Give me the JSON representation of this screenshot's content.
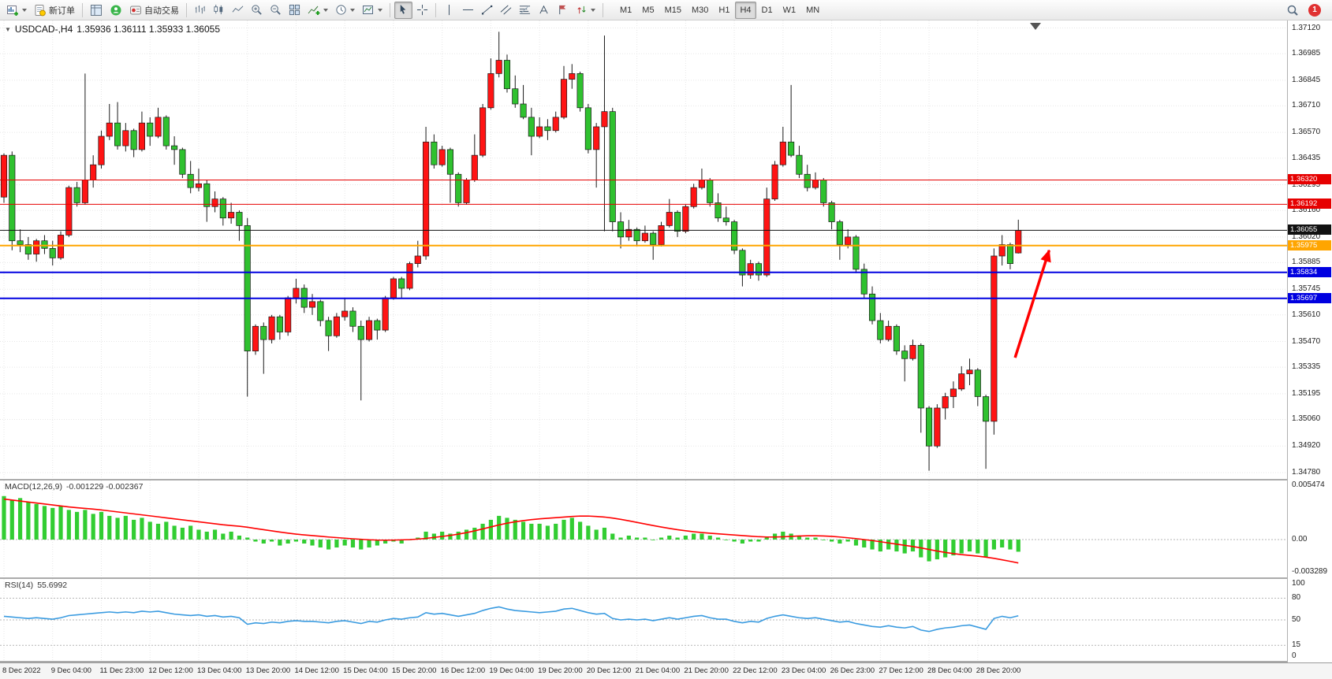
{
  "toolbar": {
    "new_order_label": "新订单",
    "autotrading_label": "自动交易",
    "timeframes": [
      "M1",
      "M5",
      "M15",
      "M30",
      "H1",
      "H4",
      "D1",
      "W1",
      "MN"
    ],
    "active_timeframe": "H4",
    "notification_badge": "1"
  },
  "chart": {
    "title": "USDCAD-,H4",
    "ohlc_quote": "1.35936 1.36111 1.35933 1.36055",
    "macd_label": "MACD(12,26,9)",
    "macd_values": "-0.001229 -0.002367",
    "rsi_label": "RSI(14)",
    "rsi_value": "55.6992"
  },
  "chart_data": {
    "type": "candlestick",
    "symbol": "USDCAD",
    "timeframe": "H4",
    "colors": {
      "up": "#FF1414",
      "down": "#2FC12F",
      "wick": "#1a1a1a",
      "macd_hist": "#32CD32",
      "macd_signal": "#FF0000",
      "rsi_line": "#3A9BE0",
      "grid": "#E7E7E7",
      "level_red": "#E60000",
      "level_blue": "#0000E0",
      "level_orange": "#FFA500",
      "current": "#111111"
    },
    "price_axis_labels": [
      "1.37120",
      "1.36985",
      "1.36845",
      "1.36710",
      "1.36570",
      "1.36435",
      "1.36295",
      "1.36160",
      "1.36020",
      "1.35885",
      "1.35745",
      "1.35610",
      "1.35470",
      "1.35335",
      "1.35195",
      "1.35060",
      "1.34920",
      "1.34780"
    ],
    "levels": [
      {
        "price": 1.3632,
        "label": "1.36320",
        "color": "#E60000",
        "thickness": 1
      },
      {
        "price": 1.36192,
        "label": "1.36192",
        "color": "#E60000",
        "thickness": 1
      },
      {
        "price": 1.36055,
        "label": "1.36055",
        "color": "#111111",
        "thickness": 1,
        "role": "current-price"
      },
      {
        "price": 1.35975,
        "label": "1.35975",
        "color": "#FFA500",
        "thickness": 2
      },
      {
        "price": 1.35834,
        "label": "1.35834",
        "color": "#0000E0",
        "thickness": 2
      },
      {
        "price": 1.35697,
        "label": "1.35697",
        "color": "#0000E0",
        "thickness": 2
      }
    ],
    "date_axis_labels": [
      "8 Dec 2022",
      "9 Dec 04:00",
      "11 Dec 23:00",
      "12 Dec 12:00",
      "13 Dec 04:00",
      "13 Dec 20:00",
      "14 Dec 12:00",
      "15 Dec 04:00",
      "15 Dec 20:00",
      "16 Dec 12:00",
      "19 Dec 04:00",
      "19 Dec 20:00",
      "20 Dec 12:00",
      "21 Dec 04:00",
      "21 Dec 20:00",
      "22 Dec 12:00",
      "23 Dec 04:00",
      "26 Dec 23:00",
      "27 Dec 12:00",
      "28 Dec 04:00",
      "28 Dec 20:00"
    ],
    "ohlc": [
      [
        1.3623,
        1.3646,
        1.362,
        1.3645
      ],
      [
        1.3645,
        1.3647,
        1.3595,
        1.36
      ],
      [
        1.36,
        1.3606,
        1.3594,
        1.3598
      ],
      [
        1.3598,
        1.3602,
        1.359,
        1.3593
      ],
      [
        1.3593,
        1.3601,
        1.3589,
        1.36
      ],
      [
        1.36,
        1.3603,
        1.3593,
        1.3596
      ],
      [
        1.3596,
        1.36,
        1.3587,
        1.3591
      ],
      [
        1.3591,
        1.3605,
        1.359,
        1.3603
      ],
      [
        1.3603,
        1.3629,
        1.3602,
        1.3628
      ],
      [
        1.3628,
        1.3631,
        1.3618,
        1.362
      ],
      [
        1.362,
        1.3688,
        1.3619,
        1.3632
      ],
      [
        1.3632,
        1.3645,
        1.3628,
        1.364
      ],
      [
        1.364,
        1.3658,
        1.3638,
        1.3655
      ],
      [
        1.3655,
        1.3672,
        1.3653,
        1.3662
      ],
      [
        1.3662,
        1.3673,
        1.3648,
        1.365
      ],
      [
        1.365,
        1.3662,
        1.3647,
        1.3658
      ],
      [
        1.3658,
        1.3659,
        1.3644,
        1.3648
      ],
      [
        1.3648,
        1.3668,
        1.3647,
        1.3662
      ],
      [
        1.3662,
        1.3665,
        1.365,
        1.3655
      ],
      [
        1.3655,
        1.367,
        1.3654,
        1.3665
      ],
      [
        1.3665,
        1.3666,
        1.3648,
        1.365
      ],
      [
        1.365,
        1.3655,
        1.364,
        1.3648
      ],
      [
        1.3648,
        1.3649,
        1.3633,
        1.3635
      ],
      [
        1.3635,
        1.3642,
        1.3625,
        1.3628
      ],
      [
        1.3628,
        1.3638,
        1.3626,
        1.363
      ],
      [
        1.363,
        1.3632,
        1.361,
        1.3618
      ],
      [
        1.3618,
        1.3626,
        1.3615,
        1.3622
      ],
      [
        1.3622,
        1.3623,
        1.3608,
        1.3612
      ],
      [
        1.3612,
        1.362,
        1.3609,
        1.3615
      ],
      [
        1.3615,
        1.3616,
        1.36,
        1.3608
      ],
      [
        1.3608,
        1.3612,
        1.3518,
        1.3542
      ],
      [
        1.3542,
        1.3556,
        1.354,
        1.3555
      ],
      [
        1.3555,
        1.3557,
        1.353,
        1.3548
      ],
      [
        1.3548,
        1.3561,
        1.3546,
        1.356
      ],
      [
        1.356,
        1.3561,
        1.3548,
        1.3552
      ],
      [
        1.3552,
        1.3571,
        1.355,
        1.357
      ],
      [
        1.357,
        1.358,
        1.3567,
        1.3575
      ],
      [
        1.3575,
        1.3577,
        1.3562,
        1.3565
      ],
      [
        1.3565,
        1.3572,
        1.3561,
        1.3568
      ],
      [
        1.3568,
        1.3569,
        1.3555,
        1.3558
      ],
      [
        1.3558,
        1.356,
        1.3542,
        1.355
      ],
      [
        1.355,
        1.3562,
        1.3549,
        1.356
      ],
      [
        1.356,
        1.357,
        1.3558,
        1.3563
      ],
      [
        1.3563,
        1.3565,
        1.3552,
        1.3555
      ],
      [
        1.3555,
        1.3558,
        1.3516,
        1.3548
      ],
      [
        1.3548,
        1.356,
        1.3547,
        1.3558
      ],
      [
        1.3558,
        1.3559,
        1.3548,
        1.3553
      ],
      [
        1.3553,
        1.3571,
        1.3552,
        1.357
      ],
      [
        1.357,
        1.3581,
        1.3569,
        1.358
      ],
      [
        1.358,
        1.3581,
        1.357,
        1.3575
      ],
      [
        1.3575,
        1.3589,
        1.3574,
        1.3588
      ],
      [
        1.3588,
        1.36,
        1.3586,
        1.3592
      ],
      [
        1.3592,
        1.366,
        1.359,
        1.3652
      ],
      [
        1.3652,
        1.3656,
        1.3638,
        1.364
      ],
      [
        1.364,
        1.365,
        1.3639,
        1.3648
      ],
      [
        1.3648,
        1.3649,
        1.362,
        1.3635
      ],
      [
        1.3635,
        1.3636,
        1.3618,
        1.362
      ],
      [
        1.362,
        1.3633,
        1.3619,
        1.3632
      ],
      [
        1.3632,
        1.3656,
        1.3631,
        1.3645
      ],
      [
        1.3645,
        1.3672,
        1.3644,
        1.367
      ],
      [
        1.367,
        1.3696,
        1.3669,
        1.3688
      ],
      [
        1.3688,
        1.371,
        1.3686,
        1.3695
      ],
      [
        1.3695,
        1.3698,
        1.3678,
        1.368
      ],
      [
        1.368,
        1.3687,
        1.367,
        1.3672
      ],
      [
        1.3672,
        1.3682,
        1.3664,
        1.3665
      ],
      [
        1.3665,
        1.367,
        1.3645,
        1.3655
      ],
      [
        1.3655,
        1.3665,
        1.3654,
        1.366
      ],
      [
        1.366,
        1.3664,
        1.3653,
        1.3658
      ],
      [
        1.3658,
        1.3668,
        1.3657,
        1.3665
      ],
      [
        1.3665,
        1.3692,
        1.3664,
        1.3685
      ],
      [
        1.3685,
        1.3693,
        1.368,
        1.3688
      ],
      [
        1.3688,
        1.3689,
        1.3668,
        1.367
      ],
      [
        1.367,
        1.3672,
        1.3646,
        1.3648
      ],
      [
        1.3648,
        1.3662,
        1.3628,
        1.366
      ],
      [
        1.366,
        1.3708,
        1.3605,
        1.3668
      ],
      [
        1.3668,
        1.367,
        1.3605,
        1.361
      ],
      [
        1.361,
        1.3615,
        1.3596,
        1.3602
      ],
      [
        1.3602,
        1.3611,
        1.36,
        1.3606
      ],
      [
        1.3606,
        1.3607,
        1.3597,
        1.36
      ],
      [
        1.36,
        1.3608,
        1.3599,
        1.3604
      ],
      [
        1.3604,
        1.3605,
        1.359,
        1.3598
      ],
      [
        1.3598,
        1.361,
        1.3597,
        1.3608
      ],
      [
        1.3608,
        1.3622,
        1.3607,
        1.3615
      ],
      [
        1.3615,
        1.3616,
        1.3602,
        1.3605
      ],
      [
        1.3605,
        1.3619,
        1.3604,
        1.3618
      ],
      [
        1.3618,
        1.363,
        1.3617,
        1.3628
      ],
      [
        1.3628,
        1.3638,
        1.3627,
        1.3632
      ],
      [
        1.3632,
        1.3633,
        1.3618,
        1.362
      ],
      [
        1.362,
        1.3625,
        1.361,
        1.3612
      ],
      [
        1.3612,
        1.3618,
        1.3608,
        1.361
      ],
      [
        1.361,
        1.3611,
        1.3593,
        1.3595
      ],
      [
        1.3595,
        1.3596,
        1.3576,
        1.3582
      ],
      [
        1.3582,
        1.359,
        1.358,
        1.3588
      ],
      [
        1.3588,
        1.3589,
        1.3579,
        1.3582
      ],
      [
        1.3582,
        1.3628,
        1.3581,
        1.3622
      ],
      [
        1.3622,
        1.3642,
        1.3621,
        1.364
      ],
      [
        1.364,
        1.366,
        1.3639,
        1.3652
      ],
      [
        1.3652,
        1.3682,
        1.3644,
        1.3645
      ],
      [
        1.3645,
        1.365,
        1.3633,
        1.3635
      ],
      [
        1.3635,
        1.364,
        1.3626,
        1.3628
      ],
      [
        1.3628,
        1.3636,
        1.3627,
        1.3632
      ],
      [
        1.3632,
        1.3633,
        1.3618,
        1.362
      ],
      [
        1.362,
        1.3621,
        1.3606,
        1.361
      ],
      [
        1.361,
        1.3611,
        1.359,
        1.3598
      ],
      [
        1.3598,
        1.3606,
        1.3596,
        1.3602
      ],
      [
        1.3602,
        1.3603,
        1.3583,
        1.3585
      ],
      [
        1.3585,
        1.3588,
        1.357,
        1.3572
      ],
      [
        1.3572,
        1.3576,
        1.3556,
        1.3558
      ],
      [
        1.3558,
        1.3562,
        1.3546,
        1.3548
      ],
      [
        1.3548,
        1.3558,
        1.3547,
        1.3555
      ],
      [
        1.3555,
        1.3556,
        1.354,
        1.3542
      ],
      [
        1.3542,
        1.3545,
        1.3526,
        1.3538
      ],
      [
        1.3538,
        1.3548,
        1.3537,
        1.3545
      ],
      [
        1.3545,
        1.3546,
        1.3499,
        1.3512
      ],
      [
        1.3512,
        1.3513,
        1.3479,
        1.3492
      ],
      [
        1.3492,
        1.3514,
        1.3491,
        1.3512
      ],
      [
        1.3512,
        1.352,
        1.3506,
        1.3518
      ],
      [
        1.3518,
        1.3526,
        1.3512,
        1.3522
      ],
      [
        1.3522,
        1.3534,
        1.3521,
        1.353
      ],
      [
        1.353,
        1.3538,
        1.3524,
        1.3532
      ],
      [
        1.3532,
        1.3533,
        1.3513,
        1.3518
      ],
      [
        1.3518,
        1.3519,
        1.348,
        1.3505
      ],
      [
        1.3505,
        1.3596,
        1.3498,
        1.3592
      ],
      [
        1.3592,
        1.3603,
        1.3587,
        1.3598
      ],
      [
        1.3598,
        1.3599,
        1.3585,
        1.3588
      ],
      [
        1.35936,
        1.36111,
        1.35933,
        1.36055
      ]
    ],
    "macd": {
      "axis_labels": [
        "0.005474",
        "0.00",
        "-0.003289"
      ],
      "histogram": [
        0.0044,
        0.004,
        0.0042,
        0.0038,
        0.0036,
        0.0034,
        0.0032,
        0.0034,
        0.003,
        0.0028,
        0.003,
        0.0026,
        0.0028,
        0.0024,
        0.0022,
        0.0024,
        0.002,
        0.0022,
        0.0018,
        0.0016,
        0.0018,
        0.0014,
        0.0012,
        0.0014,
        0.001,
        0.0008,
        0.001,
        0.0006,
        0.0008,
        0.0004,
        0.0002,
        -0.0002,
        -0.0004,
        -0.0002,
        -0.0006,
        -0.0004,
        -0.0002,
        -0.0004,
        -0.0006,
        -0.0008,
        -0.001,
        -0.0008,
        -0.0006,
        -0.0008,
        -0.001,
        -0.0008,
        -0.0006,
        -0.0004,
        -0.0002,
        -0.0004,
        0.0,
        0.0002,
        0.0008,
        0.0006,
        0.0008,
        0.0006,
        0.0008,
        0.001,
        0.0012,
        0.0016,
        0.002,
        0.0024,
        0.0022,
        0.002,
        0.0018,
        0.0016,
        0.0016,
        0.0014,
        0.0016,
        0.002,
        0.0022,
        0.0018,
        0.0014,
        0.001,
        0.0012,
        0.0006,
        0.0002,
        0.0004,
        0.0002,
        0.0002,
        0.0,
        0.0002,
        0.0004,
        0.0002,
        0.0004,
        0.0006,
        0.0006,
        0.0004,
        0.0002,
        0.0,
        -0.0002,
        -0.0004,
        -0.0002,
        -0.0002,
        0.0002,
        0.0006,
        0.0008,
        0.0006,
        0.0004,
        0.0002,
        0.0002,
        0.0,
        -0.0002,
        -0.0004,
        -0.0002,
        -0.0006,
        -0.0008,
        -0.001,
        -0.0012,
        -0.001,
        -0.0012,
        -0.0014,
        -0.0012,
        -0.0018,
        -0.0022,
        -0.002,
        -0.0018,
        -0.0016,
        -0.0014,
        -0.0012,
        -0.0014,
        -0.0018,
        -0.001,
        -0.0008,
        -0.001,
        -0.001229
      ],
      "signal": [
        0.0041,
        0.004,
        0.0039,
        0.0038,
        0.0037,
        0.0036,
        0.0035,
        0.0034,
        0.0033,
        0.00322,
        0.00315,
        0.00308,
        0.003,
        0.0029,
        0.0028,
        0.0027,
        0.0026,
        0.0025,
        0.0024,
        0.0023,
        0.0022,
        0.0021,
        0.002,
        0.0019,
        0.0018,
        0.0017,
        0.0016,
        0.0015,
        0.00142,
        0.00135,
        0.00125,
        0.00112,
        0.001,
        0.00088,
        0.00076,
        0.00065,
        0.00055,
        0.00047,
        0.0004,
        0.00033,
        0.00026,
        0.0002,
        0.00014,
        8e-05,
        3e-05,
        -2e-05,
        -5e-05,
        -6e-05,
        -5e-05,
        -3e-05,
        0.0,
        5e-05,
        0.00012,
        0.00022,
        0.00032,
        0.00042,
        0.00055,
        0.0007,
        0.00088,
        0.00108,
        0.00128,
        0.00148,
        0.00166,
        0.0018,
        0.00192,
        0.00202,
        0.0021,
        0.00216,
        0.00222,
        0.00228,
        0.00234,
        0.00238,
        0.00238,
        0.00234,
        0.00228,
        0.00218,
        0.00205,
        0.0019,
        0.00174,
        0.00158,
        0.00142,
        0.00127,
        0.00113,
        0.001,
        0.00089,
        0.00079,
        0.00071,
        0.00064,
        0.00058,
        0.00052,
        0.00046,
        0.0004,
        0.00034,
        0.00029,
        0.00026,
        0.00026,
        0.00028,
        0.00032,
        0.00036,
        0.00038,
        0.00038,
        0.00036,
        0.00032,
        0.00026,
        0.00018,
        0.0001,
        0.0,
        -0.0001,
        -0.00022,
        -0.00034,
        -0.00046,
        -0.00058,
        -0.0007,
        -0.00084,
        -0.001,
        -0.00116,
        -0.0013,
        -0.00142,
        -0.00152,
        -0.0016,
        -0.00168,
        -0.00178,
        -0.0019,
        -0.00205,
        -0.0022,
        -0.002367
      ]
    },
    "rsi": {
      "axis_labels": [
        "100",
        "80",
        "50",
        "15",
        "0"
      ],
      "levels": [
        80,
        50,
        15
      ],
      "values": [
        55,
        54,
        53,
        52,
        53,
        52,
        51,
        53,
        56,
        57,
        58,
        59,
        60,
        61,
        60,
        61,
        60,
        62,
        61,
        62,
        60,
        58,
        57,
        56,
        57,
        55,
        56,
        54,
        55,
        53,
        44,
        46,
        45,
        47,
        46,
        48,
        49,
        48,
        48,
        47,
        46,
        48,
        49,
        47,
        45,
        48,
        47,
        50,
        52,
        51,
        53,
        54,
        60,
        58,
        59,
        57,
        55,
        57,
        59,
        63,
        66,
        68,
        65,
        63,
        62,
        61,
        60,
        61,
        62,
        65,
        66,
        63,
        60,
        58,
        59,
        52,
        50,
        51,
        50,
        51,
        49,
        51,
        53,
        51,
        53,
        55,
        56,
        53,
        51,
        51,
        48,
        46,
        48,
        47,
        52,
        55,
        57,
        55,
        53,
        52,
        53,
        51,
        49,
        47,
        48,
        45,
        43,
        41,
        40,
        42,
        40,
        39,
        41,
        36,
        34,
        37,
        39,
        40,
        42,
        43,
        40,
        37,
        52,
        55,
        53,
        55.6992
      ]
    },
    "arrow_annotation": {
      "from_bar": 124.6,
      "from_price": 1.35385,
      "to_bar": 128.8,
      "to_price": 1.3595,
      "color": "#FF0000"
    }
  }
}
